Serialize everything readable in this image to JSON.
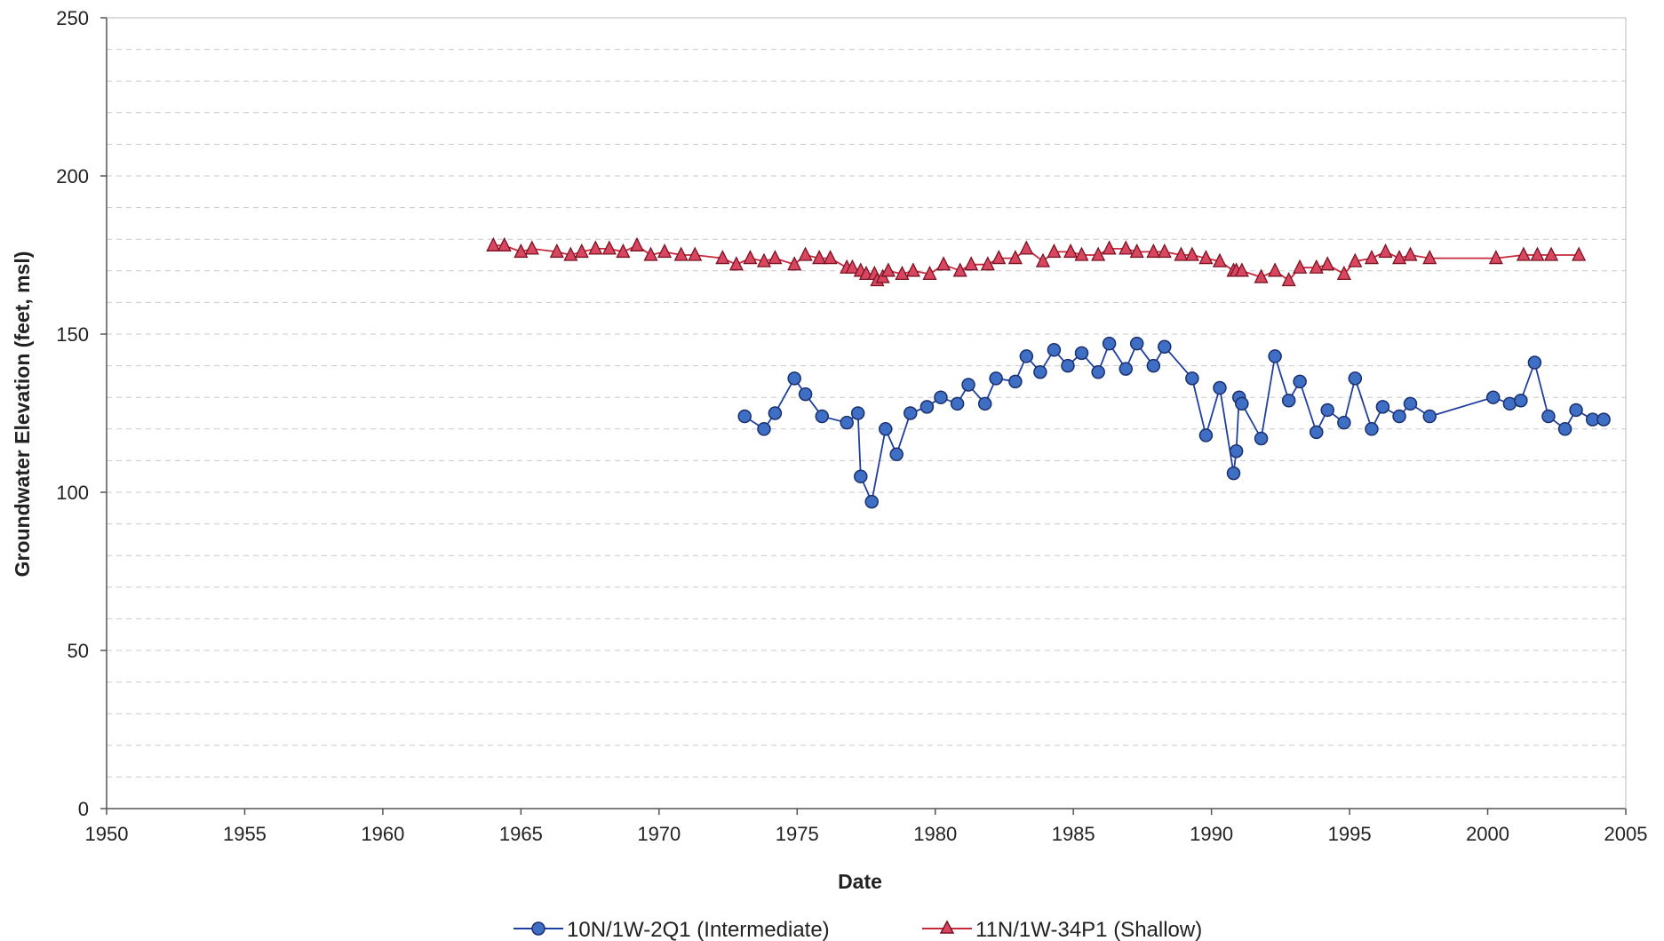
{
  "chart_data": {
    "type": "line",
    "title": "",
    "xlabel": "Date",
    "ylabel": "Groundwater Elevation (feet, msl)",
    "xlim": [
      1950,
      2005
    ],
    "ylim": [
      0,
      250
    ],
    "x_ticks": [
      "1950",
      "1955",
      "1960",
      "1965",
      "1970",
      "1975",
      "1980",
      "1985",
      "1990",
      "1995",
      "2000",
      "2005"
    ],
    "y_ticks": [
      "0",
      "50",
      "100",
      "150",
      "200",
      "250"
    ],
    "grid": true,
    "legend_position": "bottom",
    "series": [
      {
        "name": "10N/1W-2Q1 (Intermediate)",
        "color": "#1f3f9f",
        "fill": "#3f6fc4",
        "marker": "circle",
        "x": [
          1973.1,
          1973.8,
          1974.2,
          1974.9,
          1975.3,
          1975.9,
          1976.8,
          1977.2,
          1977.3,
          1977.7,
          1978.2,
          1978.6,
          1979.1,
          1979.7,
          1980.2,
          1980.8,
          1981.2,
          1981.8,
          1982.2,
          1982.9,
          1983.3,
          1983.8,
          1984.3,
          1984.8,
          1985.3,
          1985.9,
          1986.3,
          1986.9,
          1987.3,
          1987.9,
          1988.3,
          1989.3,
          1989.8,
          1990.3,
          1990.8,
          1990.9,
          1991.0,
          1991.1,
          1991.8,
          1992.3,
          1992.8,
          1993.2,
          1993.8,
          1994.2,
          1994.8,
          1995.2,
          1995.8,
          1996.2,
          1996.8,
          1997.2,
          1997.9,
          2000.2,
          2000.8,
          2001.2,
          2001.7,
          2002.2,
          2002.8,
          2003.2,
          2003.8,
          2004.2
        ],
        "y": [
          124,
          120,
          125,
          136,
          131,
          124,
          122,
          125,
          105,
          97,
          120,
          112,
          125,
          127,
          130,
          128,
          134,
          128,
          136,
          135,
          143,
          138,
          145,
          140,
          144,
          138,
          147,
          139,
          147,
          140,
          146,
          136,
          118,
          133,
          106,
          113,
          130,
          128,
          117,
          143,
          129,
          135,
          119,
          126,
          122,
          136,
          120,
          127,
          124,
          128,
          124,
          130,
          128,
          129,
          141,
          124,
          120,
          126,
          123,
          123
        ]
      },
      {
        "name": "11N/1W-34P1 (Shallow)",
        "color": "#c8283c",
        "fill": "#d94660",
        "marker": "triangle",
        "x": [
          1964.0,
          1964.4,
          1965.0,
          1965.4,
          1966.3,
          1966.8,
          1967.2,
          1967.7,
          1968.2,
          1968.7,
          1969.2,
          1969.7,
          1970.2,
          1970.8,
          1971.3,
          1972.3,
          1972.8,
          1973.3,
          1973.8,
          1974.2,
          1974.9,
          1975.3,
          1975.8,
          1976.2,
          1976.8,
          1977.0,
          1977.3,
          1977.5,
          1977.8,
          1977.9,
          1978.1,
          1978.3,
          1978.8,
          1979.2,
          1979.8,
          1980.3,
          1980.9,
          1981.3,
          1981.9,
          1982.3,
          1982.9,
          1983.3,
          1983.9,
          1984.3,
          1984.9,
          1985.3,
          1985.9,
          1986.3,
          1986.9,
          1987.3,
          1987.9,
          1988.3,
          1988.9,
          1989.3,
          1989.8,
          1990.3,
          1990.8,
          1990.9,
          1991.1,
          1991.8,
          1992.3,
          1992.8,
          1993.2,
          1993.8,
          1994.2,
          1994.8,
          1995.2,
          1995.8,
          1996.3,
          1996.8,
          1997.2,
          1997.9,
          2000.3,
          2001.3,
          2001.8,
          2002.3,
          2003.3
        ],
        "y": [
          178,
          178,
          176,
          177,
          176,
          175,
          176,
          177,
          177,
          176,
          178,
          175,
          176,
          175,
          175,
          174,
          172,
          174,
          173,
          174,
          172,
          175,
          174,
          174,
          171,
          171,
          170,
          169,
          169,
          167,
          168,
          170,
          169,
          170,
          169,
          172,
          170,
          172,
          172,
          174,
          174,
          177,
          173,
          176,
          176,
          175,
          175,
          177,
          177,
          176,
          176,
          176,
          175,
          175,
          174,
          173,
          170,
          170,
          170,
          168,
          170,
          167,
          171,
          171,
          172,
          169,
          173,
          174,
          176,
          174,
          175,
          174,
          174,
          175,
          175,
          175,
          175
        ]
      }
    ]
  }
}
